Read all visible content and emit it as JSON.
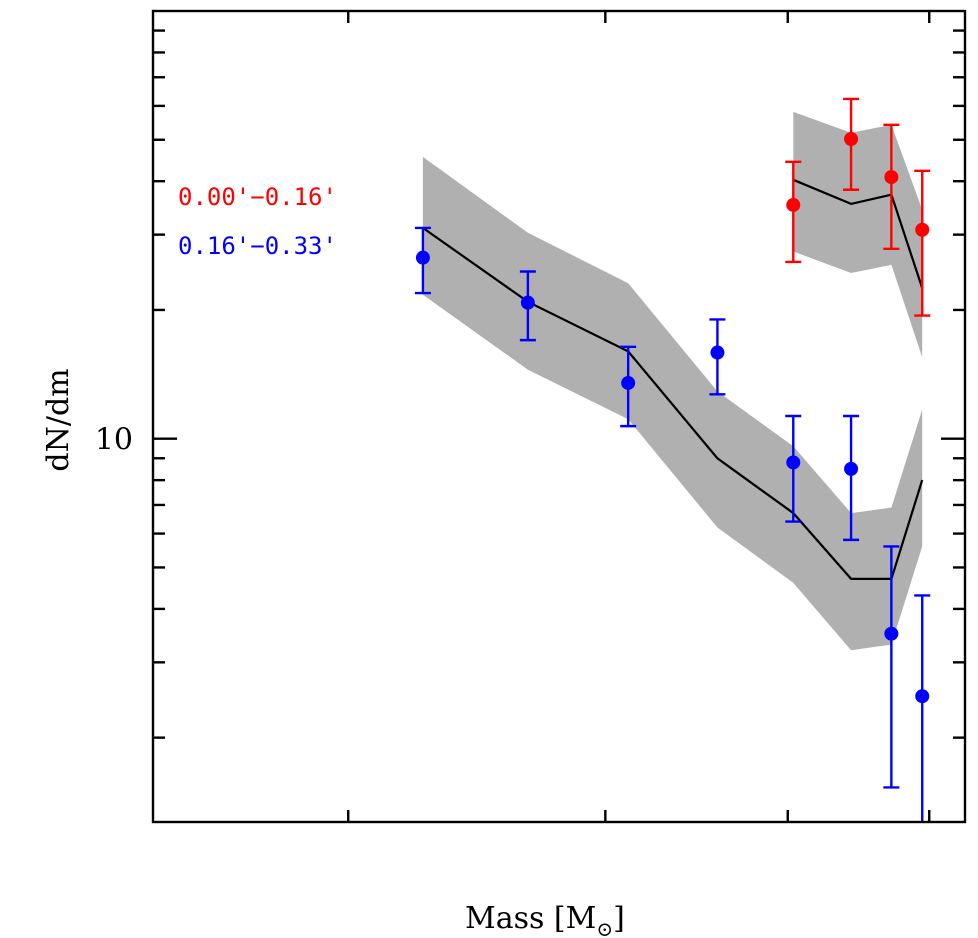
{
  "chart_data": {
    "type": "scatter",
    "title": "",
    "xlabel": "Mass [M",
    "xlabel_subscript": "⊙",
    "xlabel_close": "]",
    "ylabel": "dN/dm",
    "xscale": "log",
    "yscale": "log",
    "xlim": [
      0.294,
      1.058
    ],
    "ylim": [
      1.27,
      100
    ],
    "x_ticks": [
      0.4,
      0.6,
      0.8,
      1.0
    ],
    "x_tick_labels_visible": false,
    "y_major_ticks": [
      10
    ],
    "y_tick_labels": [
      "10"
    ],
    "y_minor_ticks": [
      2,
      3,
      4,
      5,
      6,
      7,
      8,
      9,
      20,
      30,
      40,
      50,
      60,
      70,
      80,
      90
    ],
    "grid": false,
    "legend_placement": "top-left",
    "series": [
      {
        "name": "0.00'−0.16'",
        "color": "#ff0000",
        "kind": "points-with-errorbars",
        "x": [
          0.807,
          0.884,
          0.942,
          0.989
        ],
        "y": [
          35.2,
          50.2,
          40.9,
          30.8
        ],
        "y_err_high": [
          44.4,
          62.3,
          54.2,
          42.3
        ],
        "y_err_low": [
          25.9,
          38.2,
          27.8,
          19.4
        ]
      },
      {
        "name": "0.16'−0.33'",
        "color": "#0000ff",
        "kind": "points-with-errorbars",
        "x": [
          0.45,
          0.531,
          0.622,
          0.716,
          0.807,
          0.884,
          0.942,
          0.989
        ],
        "y": [
          26.5,
          20.8,
          13.5,
          15.9,
          8.8,
          8.5,
          3.5,
          2.5
        ],
        "y_err_high": [
          31.1,
          24.6,
          16.4,
          19.0,
          11.3,
          11.3,
          5.6,
          4.3
        ],
        "y_err_low": [
          21.9,
          17.0,
          10.7,
          12.7,
          6.4,
          5.8,
          1.53,
          1.2
        ]
      }
    ],
    "models": [
      {
        "name": "model-inner",
        "line_color": "#000000",
        "band_color": "#b0b0b0",
        "x": [
          0.807,
          0.884,
          0.942,
          0.989
        ],
        "y": [
          40.3,
          35.4,
          37.2,
          22.5
        ],
        "band_high": [
          58.1,
          51.9,
          54.2,
          34.3
        ],
        "band_low": [
          27.4,
          24.4,
          25.5,
          15.5
        ]
      },
      {
        "name": "model-outer",
        "line_color": "#000000",
        "band_color": "#b0b0b0",
        "x": [
          0.45,
          0.531,
          0.622,
          0.716,
          0.807,
          0.884,
          0.942,
          0.989
        ],
        "y": [
          31.1,
          20.9,
          16.0,
          9.0,
          6.7,
          4.7,
          4.7,
          8.0
        ],
        "band_high": [
          45.6,
          30.3,
          23.1,
          12.9,
          9.6,
          6.7,
          6.9,
          11.7
        ],
        "band_low": [
          21.7,
          14.5,
          11.1,
          6.2,
          4.6,
          3.2,
          3.3,
          5.6
        ]
      }
    ],
    "legend": [
      {
        "label": "0.00'−0.16'",
        "color": "#ff0000"
      },
      {
        "label": "0.16'−0.33'",
        "color": "#0000ff"
      }
    ]
  }
}
